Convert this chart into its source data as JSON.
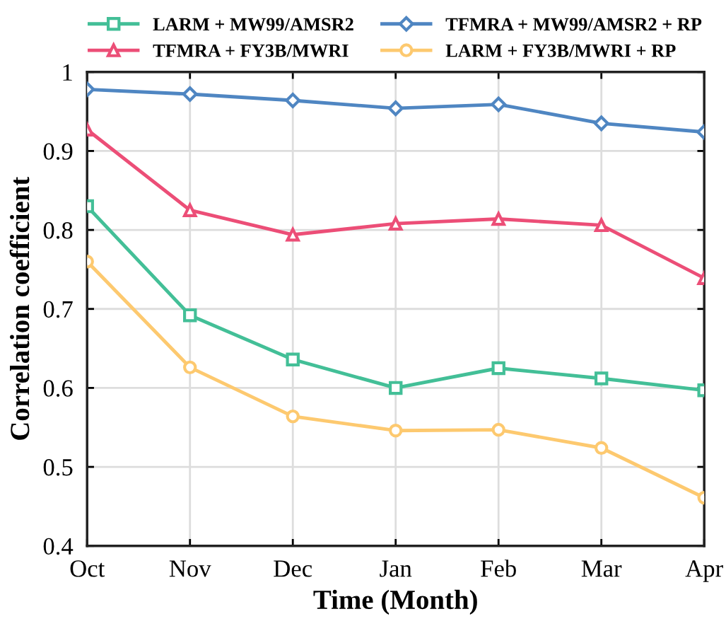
{
  "chart_data": {
    "type": "line",
    "xlabel": "Time (Month)",
    "ylabel": "Correlation coefficient",
    "categories": [
      "Oct",
      "Nov",
      "Dec",
      "Jan",
      "Feb",
      "Mar",
      "Apr"
    ],
    "series": [
      {
        "name": "LARM + MW99/AMSR2",
        "color": "#43bf97",
        "marker": "square",
        "values": [
          0.83,
          0.692,
          0.636,
          0.6,
          0.625,
          0.612,
          0.597
        ]
      },
      {
        "name": "TFMRA + FY3B/MWRI",
        "color": "#ec4e77",
        "marker": "triangle",
        "values": [
          0.927,
          0.825,
          0.794,
          0.808,
          0.814,
          0.806,
          0.739
        ]
      },
      {
        "name": "TFMRA + MW99/AMSR2 + RP",
        "color": "#4f86c2",
        "marker": "diamond",
        "values": [
          0.978,
          0.972,
          0.964,
          0.954,
          0.959,
          0.935,
          0.924
        ]
      },
      {
        "name": "LARM + FY3B/MWRI + RP",
        "color": "#fdc96f",
        "marker": "circle",
        "values": [
          0.76,
          0.626,
          0.564,
          0.546,
          0.547,
          0.524,
          0.461
        ]
      }
    ],
    "ylim": [
      0.4,
      1
    ],
    "yticks": [
      0.4,
      0.5,
      0.6,
      0.7,
      0.8,
      0.9,
      1
    ],
    "grid": true,
    "legend": "top",
    "line_style": "solid"
  }
}
